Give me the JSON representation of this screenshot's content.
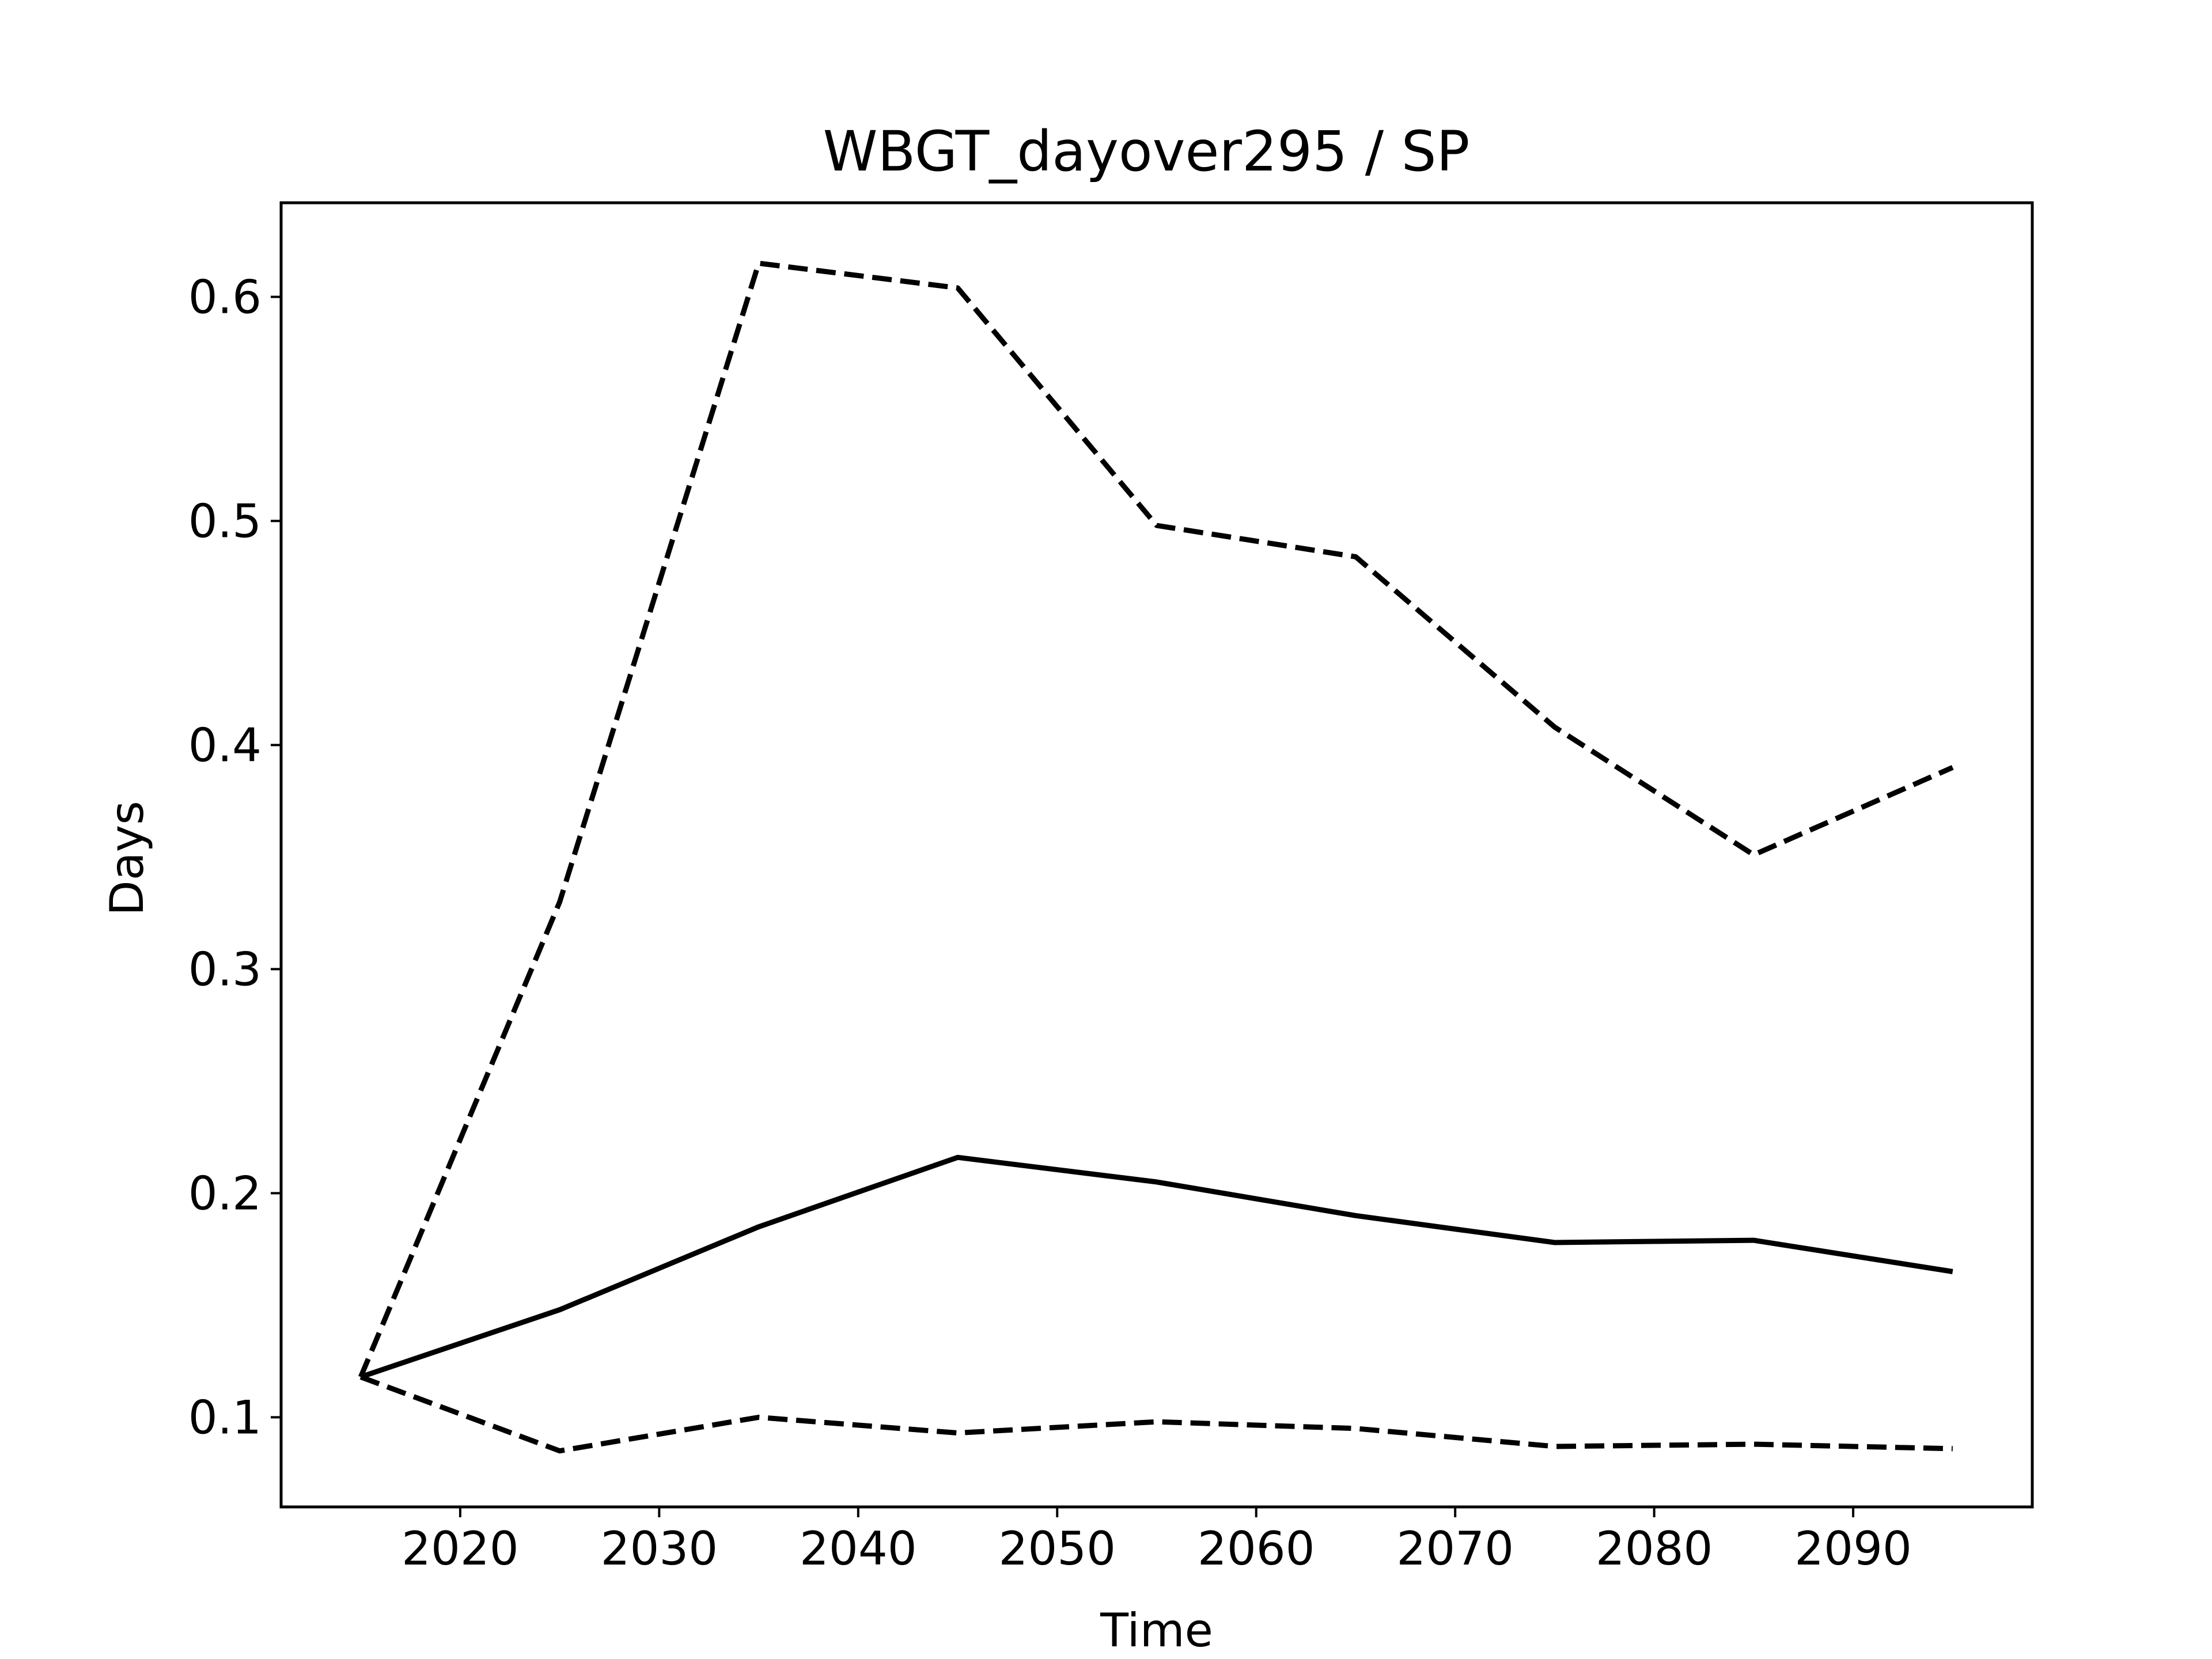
{
  "chart_data": {
    "type": "line",
    "title": "WBGT_dayover295 / SP",
    "xlabel": "Time",
    "ylabel": "Days",
    "xlim": [
      2011,
      2099
    ],
    "ylim": [
      0.06,
      0.642
    ],
    "xticks": [
      2020,
      2030,
      2040,
      2050,
      2060,
      2070,
      2080,
      2090
    ],
    "yticks": [
      0.1,
      0.2,
      0.3,
      0.4,
      0.5,
      0.6
    ],
    "ytick_labels": [
      "0.1",
      "0.2",
      "0.3",
      "0.4",
      "0.5",
      "0.6"
    ],
    "grid": false,
    "legend": "none",
    "x": [
      2015,
      2025,
      2035,
      2045,
      2055,
      2065,
      2075,
      2085,
      2095
    ],
    "series": [
      {
        "style": "dashed",
        "color": "#000000",
        "values": [
          0.118,
          0.33,
          0.615,
          0.604,
          0.498,
          0.484,
          0.408,
          0.351,
          0.39
        ]
      },
      {
        "style": "solid",
        "color": "#000000",
        "values": [
          0.118,
          0.148,
          0.185,
          0.216,
          0.205,
          0.19,
          0.178,
          0.179,
          0.165
        ]
      },
      {
        "style": "dashed",
        "color": "#000000",
        "values": [
          0.118,
          0.085,
          0.1,
          0.093,
          0.098,
          0.095,
          0.087,
          0.088,
          0.086
        ]
      }
    ]
  }
}
